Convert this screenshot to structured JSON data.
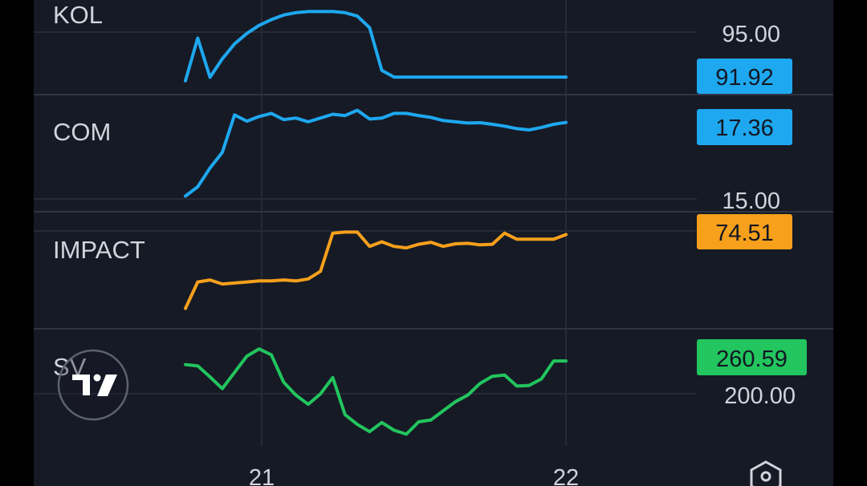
{
  "colors": {
    "background": "#161a25",
    "separator": "#2a2e39",
    "grid": "#252a36",
    "text": "#d1d4dc",
    "blue": "#1ea8f0",
    "orange": "#f7a01c",
    "green": "#22c55e"
  },
  "icons": {
    "logo": "tradingview-logo-icon",
    "settings": "settings-hexagon-icon"
  },
  "time_axis": {
    "labels": [
      "21",
      "22"
    ]
  },
  "chart_data": [
    {
      "type": "line",
      "name": "KOL",
      "color": "#1ea8f0",
      "price_label": "95.00",
      "last_value": "91.92",
      "x": [
        0,
        1,
        2,
        3,
        4,
        5,
        6,
        7,
        8,
        9,
        10,
        11,
        12,
        13,
        14,
        15,
        16,
        17,
        18,
        19,
        20,
        21,
        22,
        23,
        24,
        25,
        26,
        27,
        28,
        29,
        30,
        31
      ],
      "values": [
        91.6,
        95.3,
        91.9,
        93.5,
        94.8,
        95.7,
        96.4,
        96.9,
        97.3,
        97.5,
        97.6,
        97.6,
        97.6,
        97.5,
        97.2,
        96.2,
        92.5,
        91.92,
        91.92,
        91.92,
        91.92,
        91.92,
        91.92,
        91.92,
        91.92,
        91.92,
        91.92,
        91.92,
        91.92,
        91.92,
        91.92,
        91.92
      ],
      "ylim": [
        90.4,
        98.6
      ]
    },
    {
      "type": "line",
      "name": "COM",
      "color": "#1ea8f0",
      "price_label": "15.00",
      "last_value": "17.36",
      "x": [
        0,
        1,
        2,
        3,
        4,
        5,
        6,
        7,
        8,
        9,
        10,
        11,
        12,
        13,
        14,
        15,
        16,
        17,
        18,
        19,
        20,
        21,
        22,
        23,
        24,
        25,
        26,
        27,
        28,
        29,
        30,
        31
      ],
      "values": [
        15.0,
        15.3,
        15.9,
        16.4,
        17.6,
        17.4,
        17.55,
        17.65,
        17.45,
        17.5,
        17.38,
        17.5,
        17.62,
        17.58,
        17.75,
        17.47,
        17.5,
        17.65,
        17.65,
        17.58,
        17.52,
        17.42,
        17.38,
        17.34,
        17.35,
        17.3,
        17.24,
        17.16,
        17.12,
        17.2,
        17.3,
        17.36
      ],
      "ylim": [
        14.5,
        18.25
      ]
    },
    {
      "type": "line",
      "name": "IMPACT",
      "color": "#f7a01c",
      "last_value": "74.51",
      "x": [
        0,
        1,
        2,
        3,
        4,
        5,
        6,
        7,
        8,
        9,
        10,
        11,
        12,
        13,
        14,
        15,
        16,
        17,
        18,
        19,
        20,
        21,
        22,
        23,
        24,
        25,
        26,
        27,
        28,
        29,
        30,
        31
      ],
      "values": [
        60.0,
        65.2,
        65.6,
        64.8,
        65.0,
        65.2,
        65.4,
        65.4,
        65.6,
        65.4,
        65.8,
        67.3,
        74.8,
        75.0,
        75.0,
        72.2,
        73.1,
        72.2,
        71.9,
        72.6,
        73.0,
        72.2,
        72.7,
        72.8,
        72.5,
        72.6,
        74.8,
        73.6,
        73.6,
        73.6,
        73.6,
        74.51
      ],
      "ylim": [
        56.0,
        79.0
      ]
    },
    {
      "type": "line",
      "name": "SV",
      "color": "#22c55e",
      "price_label": "200.00",
      "last_value": "260.59",
      "x": [
        0,
        1,
        2,
        3,
        4,
        5,
        6,
        7,
        8,
        9,
        10,
        11,
        12,
        13,
        14,
        15,
        16,
        17,
        18,
        19,
        20,
        21,
        22,
        23,
        24,
        25,
        26,
        27,
        28,
        29,
        30,
        31
      ],
      "values": [
        255,
        253,
        236,
        218,
        243,
        268,
        279,
        270,
        228,
        208,
        194,
        210,
        235,
        178,
        163,
        152,
        166,
        154,
        148,
        167,
        170,
        184,
        198,
        208,
        226,
        237,
        239,
        222,
        223,
        233,
        260.59,
        260.59
      ],
      "ylim": [
        130,
        310
      ]
    }
  ]
}
